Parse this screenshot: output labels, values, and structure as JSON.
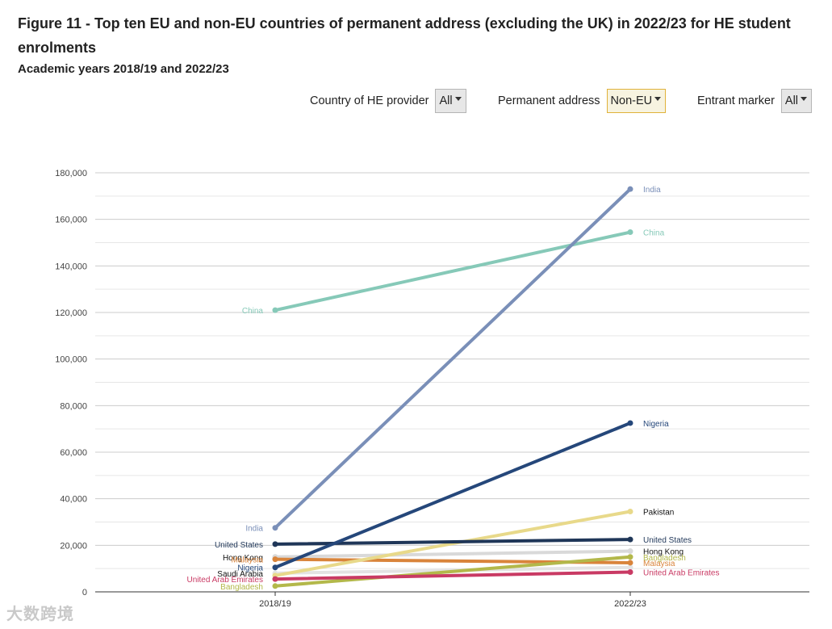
{
  "header": {
    "title": "Figure 11 - Top ten EU and non-EU countries of permanent address (excluding the UK) in 2022/23 for HE student enrolments",
    "subtitle": "Academic years 2018/19 and 2022/23"
  },
  "filters": {
    "provider": {
      "label": "Country of HE provider",
      "value": "All"
    },
    "address": {
      "label": "Permanent address",
      "value": "Non-EU"
    },
    "entrant": {
      "label": "Entrant marker",
      "value": "All"
    }
  },
  "watermark": "大数跨境",
  "chart_data": {
    "type": "line",
    "title": "Top ten EU and non-EU countries of permanent address (excluding the UK) in 2022/23 for HE student enrolments",
    "categories": [
      "2018/19",
      "2022/23"
    ],
    "ylim": [
      0,
      180000
    ],
    "yticks": [
      0,
      20000,
      40000,
      60000,
      80000,
      100000,
      120000,
      140000,
      160000,
      180000
    ],
    "ytick_labels": [
      "0",
      "20,000",
      "40,000",
      "60,000",
      "80,000",
      "100,000",
      "120,000",
      "140,000",
      "160,000",
      "180,000"
    ],
    "grid": true,
    "series": [
      {
        "name": "Saudi Arabia",
        "values": [
          8000,
          10500
        ],
        "color": "#e3e3e3",
        "label_color": "#111111",
        "show_right": false
      },
      {
        "name": "Hong Kong",
        "values": [
          15000,
          17500
        ],
        "color": "#d9d9d9",
        "label_color": "#111111"
      },
      {
        "name": "Malaysia",
        "values": [
          14000,
          12500
        ],
        "color": "#d9843b",
        "label_color": "#d9843b"
      },
      {
        "name": "Bangladesh",
        "values": [
          2500,
          15000
        ],
        "color": "#b3b84a",
        "label_color": "#b3b84a"
      },
      {
        "name": "Pakistan",
        "values": [
          7000,
          34500
        ],
        "color": "#e8d98a",
        "label_color": "#111111",
        "show_left": false
      },
      {
        "name": "United States",
        "values": [
          20500,
          22500
        ],
        "color": "#1f3658",
        "label_color": "#1f3658"
      },
      {
        "name": "United Arab Emirates",
        "values": [
          5500,
          8500
        ],
        "color": "#c93a64",
        "label_color": "#c93a64"
      },
      {
        "name": "Nigeria",
        "values": [
          10500,
          72500
        ],
        "color": "#25477a",
        "label_color": "#25477a"
      },
      {
        "name": "China",
        "values": [
          121000,
          154500
        ],
        "color": "#86c9b8",
        "label_color": "#86c9b8"
      },
      {
        "name": "India",
        "values": [
          27500,
          173000
        ],
        "color": "#7a8fb8",
        "label_color": "#7a8fb8"
      }
    ]
  }
}
